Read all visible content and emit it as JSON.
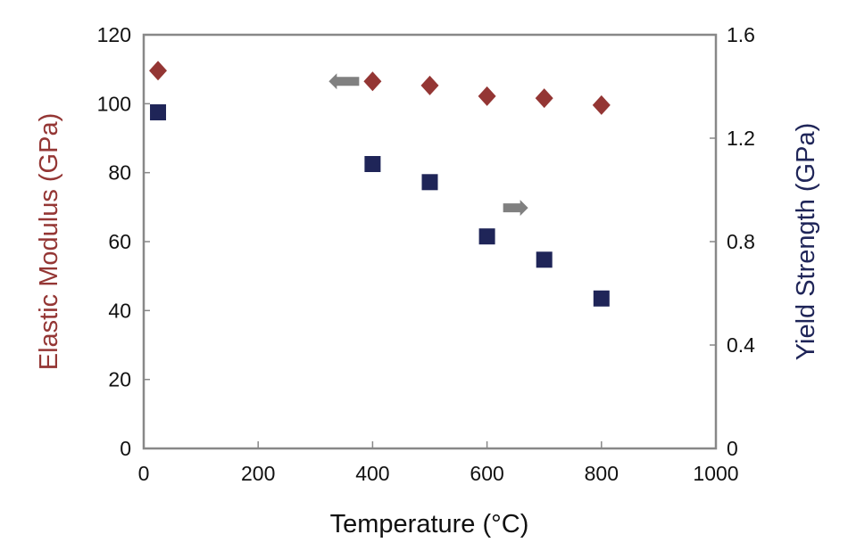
{
  "chart_data": {
    "type": "scatter",
    "title": "",
    "xlabel": "Temperature (°C)",
    "ylabel": "Elastic Modulus (GPa)",
    "y2label": "Yield Strength (GPa)",
    "xlim": [
      0,
      1000
    ],
    "ylim": [
      0,
      120
    ],
    "y2lim": [
      0,
      1.6
    ],
    "xticks": [
      "0",
      "200",
      "400",
      "600",
      "800",
      "1000"
    ],
    "yticks": [
      "0",
      "20",
      "40",
      "60",
      "80",
      "100",
      "120"
    ],
    "y2ticks": [
      "0",
      "0.4",
      "0.8",
      "1.2",
      "1.6"
    ],
    "grid": false,
    "series": [
      {
        "name": "Elastic Modulus",
        "axis": "left",
        "marker": "diamond",
        "color": "#943634",
        "x": [
          25,
          400,
          500,
          600,
          700,
          800
        ],
        "y": [
          109.6,
          106.5,
          105.3,
          102.2,
          101.6,
          99.6
        ]
      },
      {
        "name": "Yield Strength",
        "axis": "right",
        "marker": "square",
        "color": "#1f2558",
        "x": [
          25,
          400,
          500,
          600,
          700,
          800
        ],
        "y": [
          1.3,
          1.1,
          1.03,
          0.82,
          0.73,
          0.58
        ]
      }
    ],
    "annotations": [
      {
        "type": "arrow",
        "direction": "left",
        "points_to": "left axis",
        "x": 350,
        "y": 106.5,
        "color": "#808080"
      },
      {
        "type": "arrow",
        "direction": "right",
        "points_to": "right axis",
        "x": 650,
        "y": 69.8,
        "color": "#808080"
      }
    ],
    "axis_color": "#888888",
    "ylabel_color": "#943634",
    "y2label_color": "#1f2558"
  }
}
